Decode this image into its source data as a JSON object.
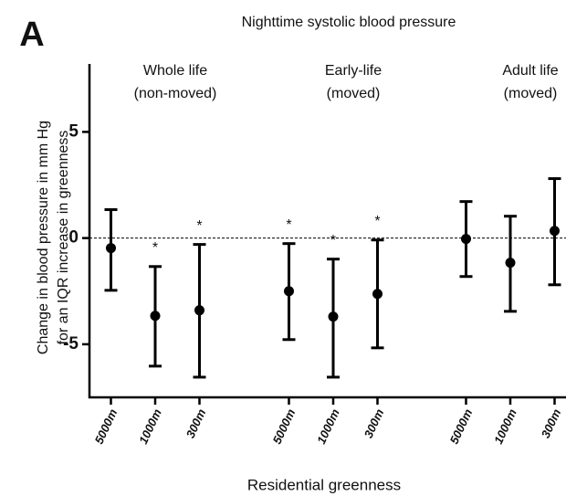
{
  "chart_data": {
    "type": "errorbar",
    "panel_label": "A",
    "title": "Nighttime systolic blood pressure",
    "y_label_lines": [
      "Change in  blood pressure in mm Hg",
      "for an IQR increase in greenness"
    ],
    "x_label": "Residential greenness",
    "ylim": [
      -7.5,
      8.2
    ],
    "yticks": [
      5,
      0,
      -5
    ],
    "reference_line": 0,
    "color": "#000000",
    "groups": [
      {
        "label_lines": [
          "Whole life",
          "(non-moved)"
        ],
        "categories": [
          "5000m",
          "1000m",
          "300m"
        ],
        "values": [
          -0.47,
          -3.66,
          -3.4
        ],
        "lower": [
          -2.46,
          -6.03,
          -6.55
        ],
        "upper": [
          1.34,
          -1.34,
          -0.3
        ],
        "significance": [
          null,
          "*",
          "*"
        ]
      },
      {
        "label_lines": [
          "Early-life",
          "(moved)"
        ],
        "categories": [
          "5000m",
          "1000m",
          "300m"
        ],
        "values": [
          -2.5,
          -3.7,
          -2.63
        ],
        "lower": [
          -4.78,
          -6.55,
          -5.17
        ],
        "upper": [
          -0.26,
          -0.99,
          -0.09
        ],
        "significance": [
          "*",
          "*",
          "*"
        ]
      },
      {
        "label_lines": [
          "Adult life",
          "(moved)"
        ],
        "categories": [
          "5000m",
          "1000m",
          "300m"
        ],
        "values": [
          -0.04,
          -1.16,
          0.34
        ],
        "lower": [
          -1.81,
          -3.45,
          -2.2
        ],
        "upper": [
          1.72,
          1.03,
          2.8
        ],
        "significance": [
          null,
          null,
          null
        ]
      }
    ]
  }
}
